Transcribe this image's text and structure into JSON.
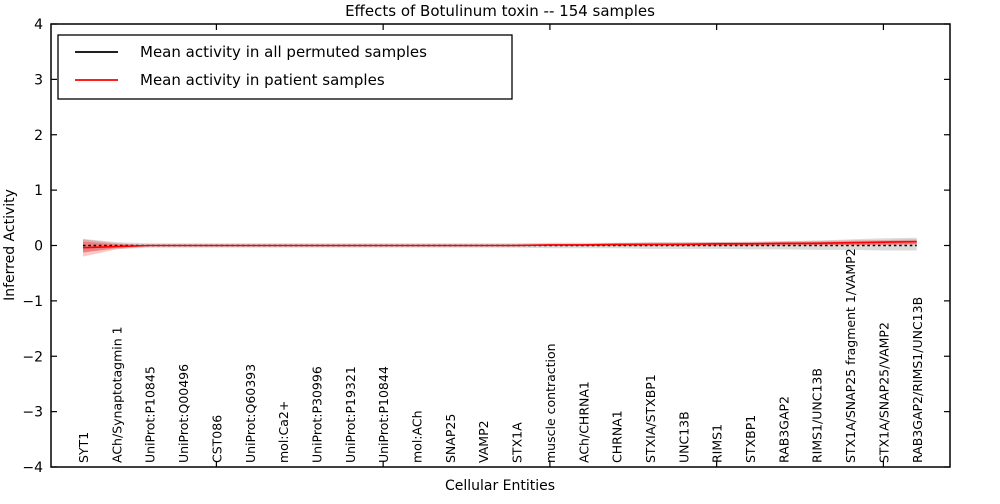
{
  "title": "Effects of Botulinum toxin -- 154 samples",
  "legend": {
    "position": "upper left",
    "items": [
      {
        "label": "Mean activity in all permuted samples",
        "color": "#000000",
        "style": "solid"
      },
      {
        "label": "Mean activity in patient samples",
        "color": "#ff0000",
        "style": "solid"
      }
    ]
  },
  "chart_data": {
    "type": "line",
    "title": "Effects of Botulinum toxin -- 154 samples",
    "xlabel": "Cellular Entities",
    "ylabel": "Inferred Activity",
    "ylim": [
      -4,
      4
    ],
    "yticks": [
      -4,
      -3,
      -2,
      -1,
      0,
      1,
      2,
      3,
      4
    ],
    "x_major_tick_indices": [
      4,
      9,
      14,
      19,
      24
    ],
    "grid": false,
    "legend_position": "upper left",
    "categories": [
      "SYT1",
      "ACh/Synaptotagmin 1",
      "UniProt:P10845",
      "UniProt:Q00496",
      "CST086",
      "UniProt:Q60393",
      "mol:Ca2+",
      "UniProt:P30996",
      "UniProt:P19321",
      "UniProt:P10844",
      "mol:ACh",
      "SNAP25",
      "VAMP2",
      "STX1A",
      "muscle contraction",
      "ACh/CHRNA1",
      "CHRNA1",
      "STXIA/STXBP1",
      "UNC13B",
      "RIMS1",
      "STXBP1",
      "RAB3GAP2",
      "RIMS1/UNC13B",
      "STX1A/SNAP25 fragment 1/VAMP2",
      "STX1A/SNAP25/VAMP2",
      "RAB3GAP2/RIMS1/UNC13B"
    ],
    "series": [
      {
        "name": "Mean activity in all permuted samples",
        "color": "#000000",
        "style": "dotted",
        "values": [
          0,
          0,
          0,
          0,
          0,
          0,
          0,
          0,
          0,
          0,
          0,
          0,
          0,
          0,
          0,
          0,
          0,
          0,
          0,
          0,
          0,
          0,
          0,
          0,
          0,
          0
        ]
      },
      {
        "name": "Mean activity in patient samples",
        "color": "#ff0000",
        "style": "solid",
        "values": [
          -0.04,
          -0.02,
          0,
          0,
          0,
          0,
          0,
          0,
          0,
          0,
          0,
          0,
          0,
          0,
          0.01,
          0.01,
          0.02,
          0.02,
          0.02,
          0.03,
          0.03,
          0.04,
          0.04,
          0.05,
          0.06,
          0.07
        ]
      }
    ],
    "bands": [
      {
        "name": "permuted-std-band",
        "color": "#000000",
        "opacity": 0.14,
        "upper": [
          0.12,
          0.06,
          0.04,
          0.04,
          0.04,
          0.04,
          0.04,
          0.04,
          0.04,
          0.04,
          0.04,
          0.04,
          0.04,
          0.04,
          0.05,
          0.05,
          0.05,
          0.06,
          0.06,
          0.06,
          0.07,
          0.08,
          0.09,
          0.11,
          0.13,
          0.14
        ],
        "lower": [
          -0.12,
          -0.06,
          -0.04,
          -0.04,
          -0.04,
          -0.04,
          -0.04,
          -0.04,
          -0.04,
          -0.04,
          -0.04,
          -0.04,
          -0.04,
          -0.04,
          -0.05,
          -0.05,
          -0.05,
          -0.06,
          -0.06,
          -0.06,
          -0.07,
          -0.07,
          -0.08,
          -0.08,
          -0.09,
          -0.09
        ]
      },
      {
        "name": "patient-std-band-outer",
        "color": "#ff0000",
        "opacity": 0.22,
        "upper": [
          0.11,
          0.04,
          0.01,
          0.01,
          0.01,
          0.01,
          0.01,
          0.01,
          0.01,
          0.01,
          0.01,
          0.01,
          0.01,
          0.02,
          0.03,
          0.03,
          0.04,
          0.05,
          0.05,
          0.06,
          0.06,
          0.07,
          0.08,
          0.09,
          0.1,
          0.11
        ],
        "lower": [
          -0.2,
          -0.07,
          -0.01,
          -0.01,
          -0.01,
          -0.01,
          -0.01,
          -0.01,
          -0.01,
          -0.01,
          -0.01,
          -0.01,
          -0.01,
          -0.01,
          -0.01,
          -0.01,
          -0.01,
          0,
          0,
          0,
          0,
          0.01,
          0.01,
          0.01,
          0.02,
          0.02
        ],
        "legend_hidden": true
      },
      {
        "name": "patient-std-band-inner",
        "color": "#ff0000",
        "opacity": 0.25,
        "upper": [
          0.07,
          0.02,
          0.005,
          0.005,
          0.005,
          0.005,
          0.005,
          0.005,
          0.005,
          0.005,
          0.005,
          0.005,
          0.005,
          0.01,
          0.02,
          0.02,
          0.03,
          0.03,
          0.04,
          0.04,
          0.05,
          0.05,
          0.06,
          0.07,
          0.08,
          0.09
        ],
        "lower": [
          -0.13,
          -0.04,
          -0.005,
          -0.005,
          -0.005,
          -0.005,
          -0.005,
          -0.005,
          -0.005,
          -0.005,
          -0.005,
          -0.005,
          -0.005,
          -0.005,
          -0.005,
          -0.005,
          -0.005,
          0,
          0,
          0,
          0,
          0,
          0.01,
          0.01,
          0.01,
          0.02
        ]
      }
    ]
  }
}
